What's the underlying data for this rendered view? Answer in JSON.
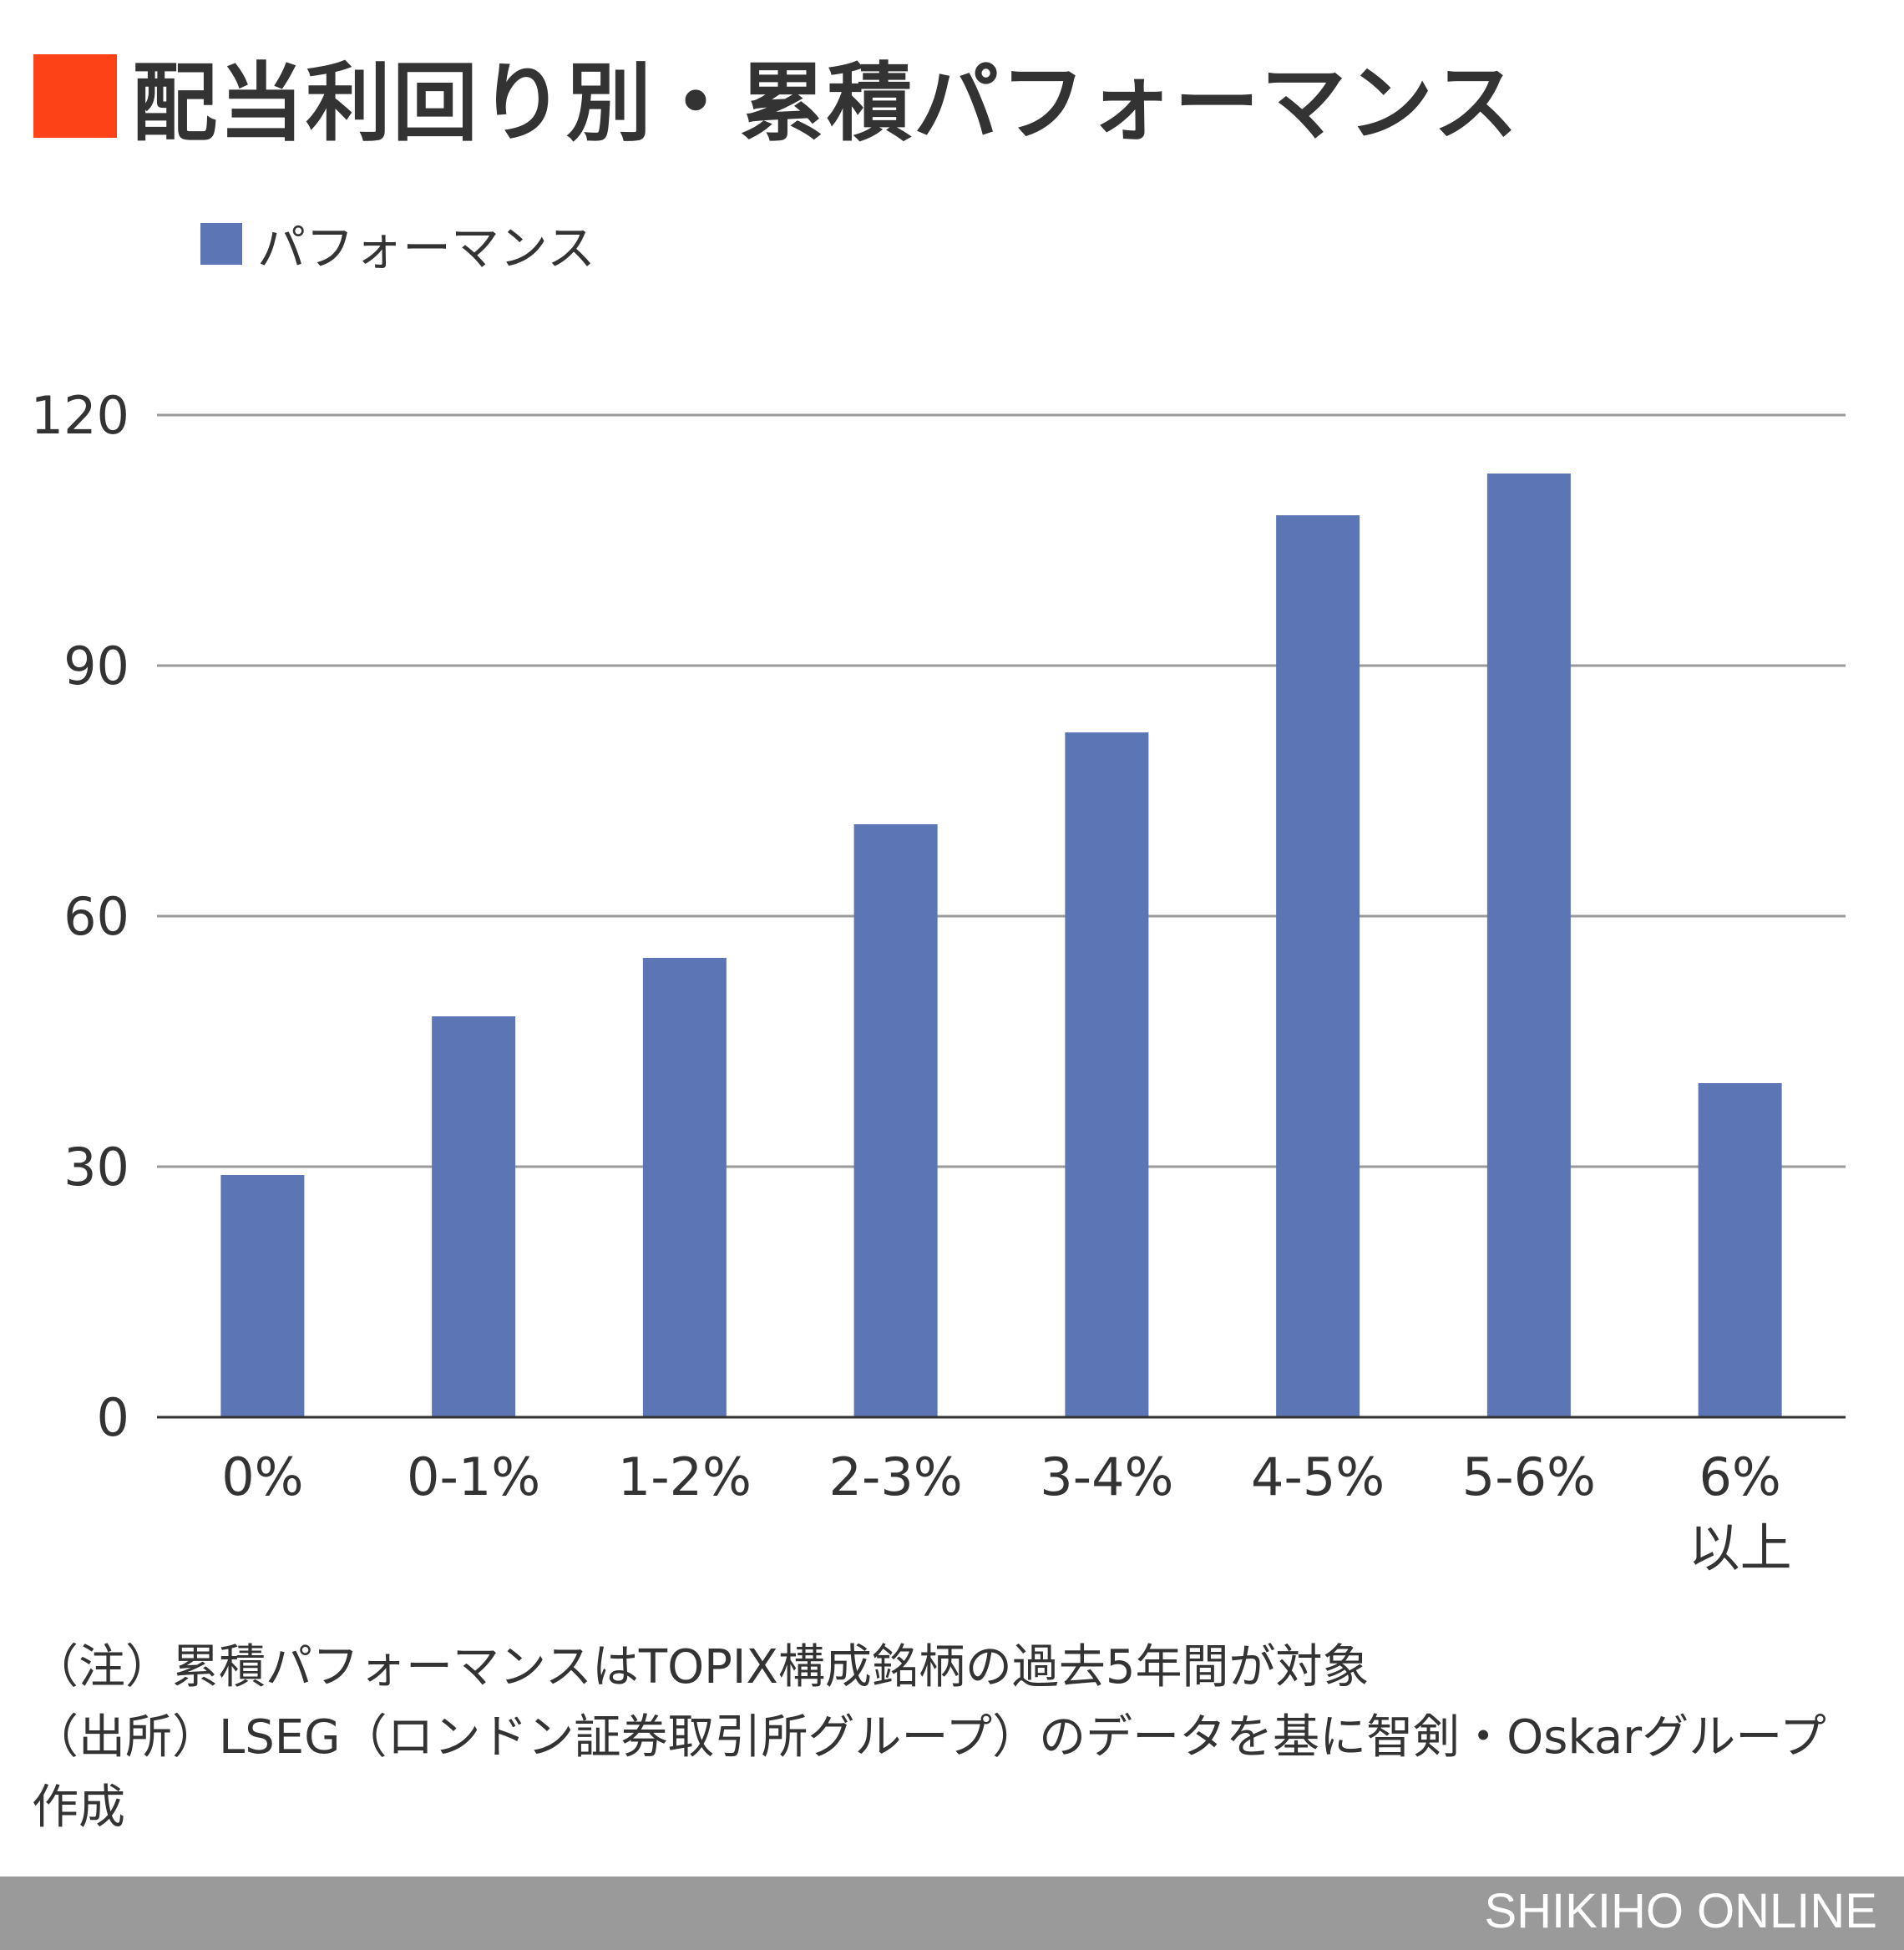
{
  "title": "配当利回り別・累積パフォーマンス",
  "colors": {
    "accent": "#fc4216",
    "bar": "#5b75b5",
    "grid": "#9a9a9a",
    "footer": "#9a9a9a"
  },
  "chart_data": {
    "type": "bar",
    "title": "配当利回り別・累積パフォーマンス",
    "xlabel": "",
    "ylabel": "",
    "categories": [
      [
        "0%"
      ],
      [
        "0-1%"
      ],
      [
        "1-2%"
      ],
      [
        "2-3%"
      ],
      [
        "3-4%"
      ],
      [
        "4-5%"
      ],
      [
        "5-6%"
      ],
      [
        "6%",
        "以上"
      ]
    ],
    "series": [
      {
        "name": "パフォーマンス",
        "values": [
          29,
          48,
          55,
          71,
          82,
          108,
          113,
          40
        ]
      }
    ],
    "ylim": [
      0,
      120
    ],
    "yticks": [
      0,
      30,
      60,
      90,
      120
    ],
    "grid": true,
    "legend": "top-left"
  },
  "notes": [
    "（注）累積パフォーマンスはTOPIX構成銘柄の過去5年間が対象",
    "（出所）LSEG（ロンドン証券取引所グループ）のデータを基に智剣・Oskarグループ作成"
  ],
  "footer": "SHIKIHO ONLINE"
}
